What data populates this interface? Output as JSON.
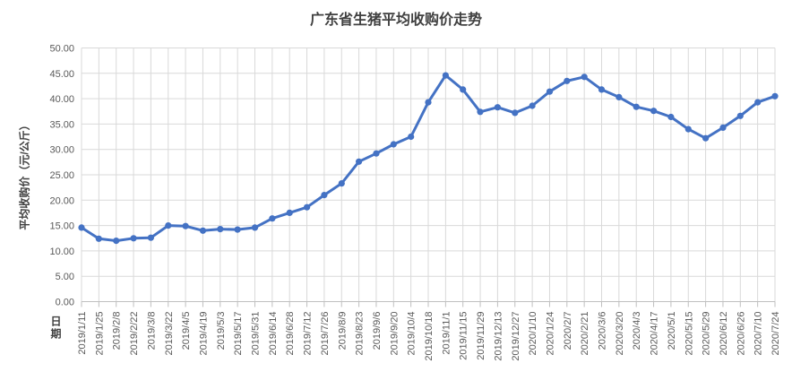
{
  "colors": {
    "line": "#4472C4",
    "gridline": "#D9D9D9",
    "axis_line": "#BFBFBF",
    "axis_text": "#595959",
    "title_text": "#404040",
    "background": "#FFFFFF"
  },
  "chart_data": {
    "type": "line",
    "title": "广东省生猪平均收购价走势",
    "xlabel": "日期",
    "ylabel": "平均收购价（元/公斤）",
    "ylim": [
      0,
      50
    ],
    "ytick_step": 5,
    "ytick_labels": [
      "0.00",
      "5.00",
      "10.00",
      "15.00",
      "20.00",
      "25.00",
      "30.00",
      "35.00",
      "40.00",
      "45.00",
      "50.00"
    ],
    "grid": true,
    "legend": "none",
    "marker": "circle",
    "categories": [
      "2019/1/11",
      "2019/1/25",
      "2019/2/8",
      "2019/2/22",
      "2019/3/8",
      "2019/3/22",
      "2019/4/5",
      "2019/4/19",
      "2019/5/3",
      "2019/5/17",
      "2019/5/31",
      "2019/6/14",
      "2019/6/28",
      "2019/7/12",
      "2019/7/26",
      "2019/8/9",
      "2019/8/23",
      "2019/9/6",
      "2019/9/20",
      "2019/10/4",
      "2019/10/18",
      "2019/11/1",
      "2019/11/15",
      "2019/11/29",
      "2019/12/13",
      "2019/12/27",
      "2020/1/10",
      "2020/1/24",
      "2020/2/7",
      "2020/2/21",
      "2020/3/6",
      "2020/3/20",
      "2020/4/3",
      "2020/4/17",
      "2020/5/1",
      "2020/5/15",
      "2020/5/29",
      "2020/6/12",
      "2020/6/26",
      "2020/7/10",
      "2020/7/24"
    ],
    "values": [
      14.6,
      12.4,
      12.0,
      12.5,
      12.6,
      15.0,
      14.9,
      14.0,
      14.3,
      14.2,
      14.6,
      16.4,
      17.5,
      18.6,
      21.0,
      23.3,
      27.6,
      29.2,
      31.0,
      32.5,
      39.3,
      44.6,
      41.8,
      37.4,
      38.3,
      37.2,
      38.6,
      41.4,
      43.5,
      44.3,
      41.8,
      40.3,
      38.4,
      37.6,
      36.4,
      34.0,
      32.2,
      34.3,
      36.6,
      39.3,
      40.5
    ]
  }
}
